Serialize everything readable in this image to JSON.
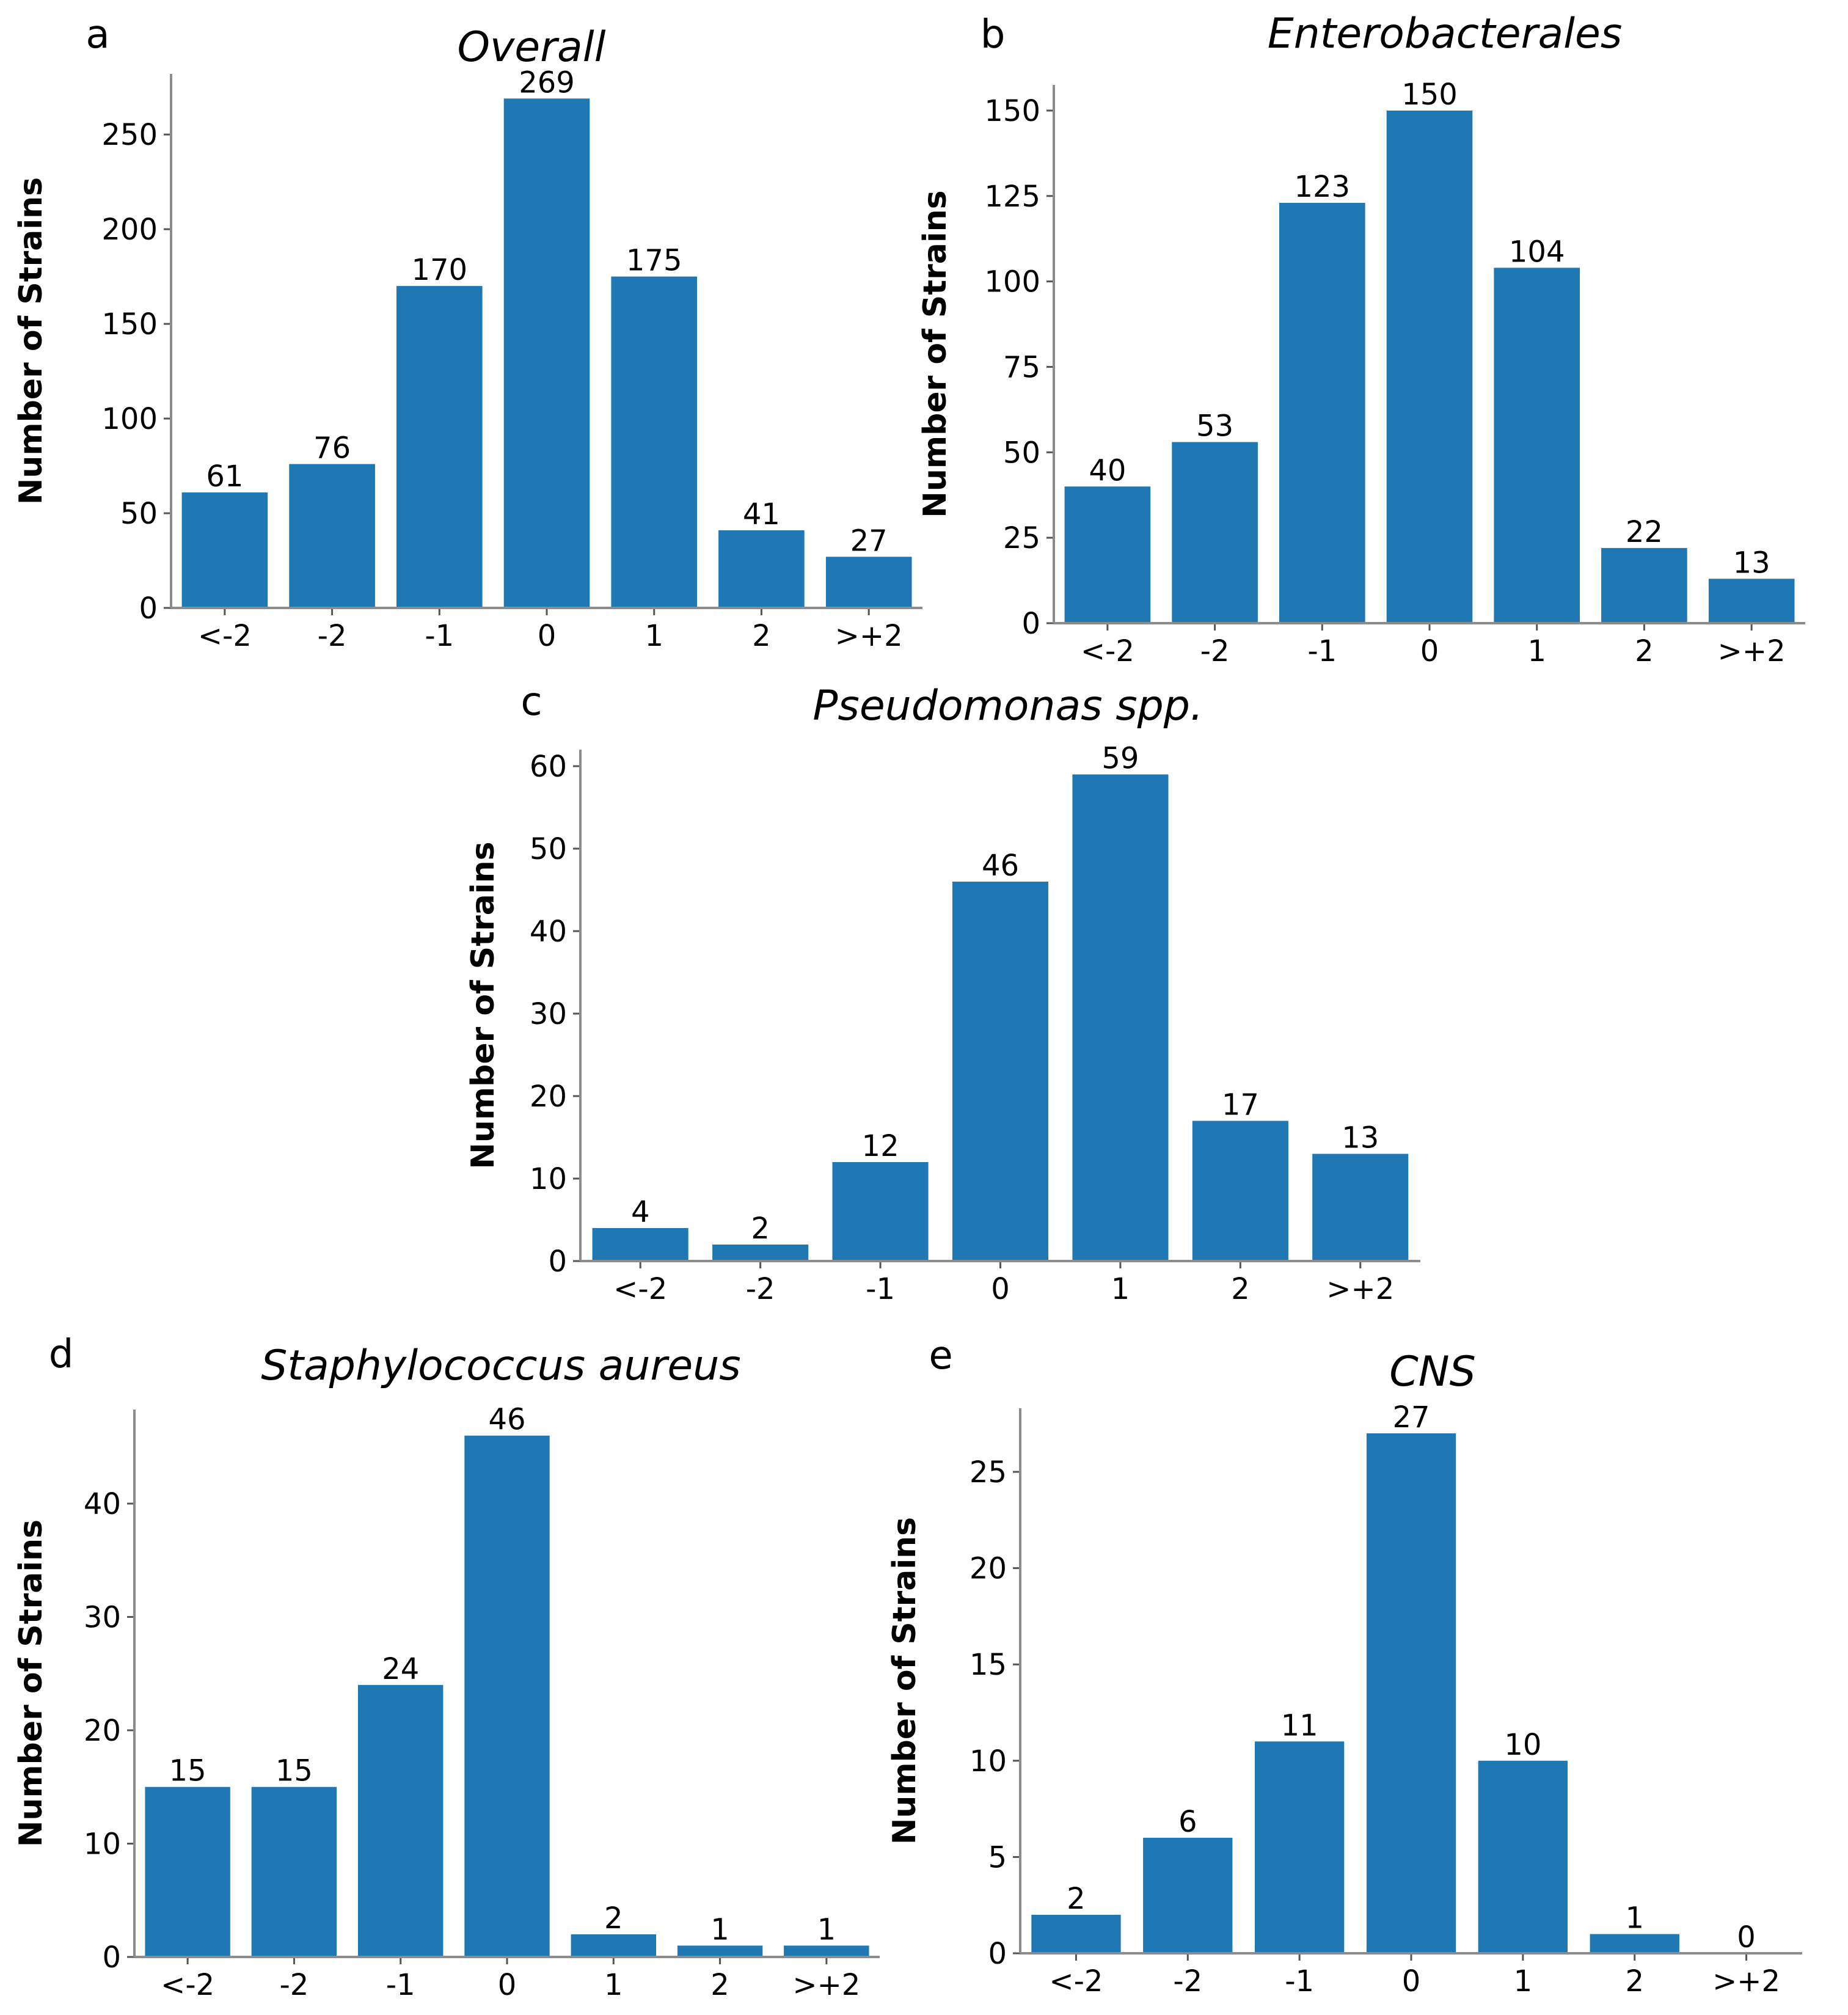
{
  "colors": {
    "bar": "#1f77b4",
    "axis": "#8c8c8c",
    "text": "#000000"
  },
  "chart_data": [
    {
      "panel": "a",
      "type": "bar",
      "title": "Overall",
      "xlabel": "",
      "ylabel": "Number of Strains",
      "categories": [
        "<-2",
        "-2",
        "-1",
        "0",
        "1",
        "2",
        ">+2"
      ],
      "values": [
        61,
        76,
        170,
        269,
        175,
        41,
        27
      ],
      "value_labels": [
        "61",
        "76",
        "170",
        "269",
        "175",
        "41",
        "27"
      ],
      "yticks": [
        0,
        50,
        100,
        150,
        200,
        250
      ],
      "ytick_labels": [
        "0",
        "50",
        "100",
        "150",
        "200",
        "250"
      ],
      "ylim": [
        0,
        282
      ]
    },
    {
      "panel": "b",
      "type": "bar",
      "title": "Enterobacterales",
      "xlabel": "",
      "ylabel": "Number of Strains",
      "categories": [
        "<-2",
        "-2",
        "-1",
        "0",
        "1",
        "2",
        ">+2"
      ],
      "values": [
        40,
        53,
        123,
        150,
        104,
        22,
        13
      ],
      "value_labels": [
        "40",
        "53",
        "123",
        "150",
        "104",
        "22",
        "13"
      ],
      "yticks": [
        0,
        25,
        50,
        75,
        100,
        125,
        150
      ],
      "ytick_labels": [
        "0",
        "25",
        "50",
        "75",
        "100",
        "125",
        "150"
      ],
      "ylim": [
        0,
        157.5
      ]
    },
    {
      "panel": "c",
      "type": "bar",
      "title": "Pseudomonas spp.",
      "xlabel": "",
      "ylabel": "Number of Strains",
      "categories": [
        "<-2",
        "-2",
        "-1",
        "0",
        "1",
        "2",
        ">+2"
      ],
      "values": [
        4,
        2,
        12,
        46,
        59,
        17,
        13
      ],
      "value_labels": [
        "4",
        "2",
        "12",
        "46",
        "59",
        "17",
        "13"
      ],
      "yticks": [
        0,
        10,
        20,
        30,
        40,
        50,
        60
      ],
      "ytick_labels": [
        "0",
        "10",
        "20",
        "30",
        "40",
        "50",
        "60"
      ],
      "ylim": [
        0,
        62
      ]
    },
    {
      "panel": "d",
      "type": "bar",
      "title": "Staphylococcus aureus",
      "xlabel": "",
      "ylabel": "Number of Strains",
      "categories": [
        "<-2",
        "-2",
        "-1",
        "0",
        "1",
        "2",
        ">+2"
      ],
      "values": [
        15,
        15,
        24,
        46,
        2,
        1,
        1
      ],
      "value_labels": [
        "15",
        "15",
        "24",
        "46",
        "2",
        "1",
        "1"
      ],
      "yticks": [
        0,
        10,
        20,
        30,
        40
      ],
      "ytick_labels": [
        "0",
        "10",
        "20",
        "30",
        "40"
      ],
      "ylim": [
        0,
        48.3
      ]
    },
    {
      "panel": "e",
      "type": "bar",
      "title": "CNS",
      "xlabel": "",
      "ylabel": "Number of Strains",
      "categories": [
        "<-2",
        "-2",
        "-1",
        "0",
        "1",
        "2",
        ">+2"
      ],
      "values": [
        2,
        6,
        11,
        27,
        10,
        1,
        0
      ],
      "value_labels": [
        "2",
        "6",
        "11",
        "27",
        "10",
        "1",
        "0"
      ],
      "yticks": [
        0,
        5,
        10,
        15,
        20,
        25
      ],
      "ytick_labels": [
        "0",
        "5",
        "10",
        "15",
        "20",
        "25"
      ],
      "ylim": [
        0,
        28.3
      ]
    }
  ]
}
